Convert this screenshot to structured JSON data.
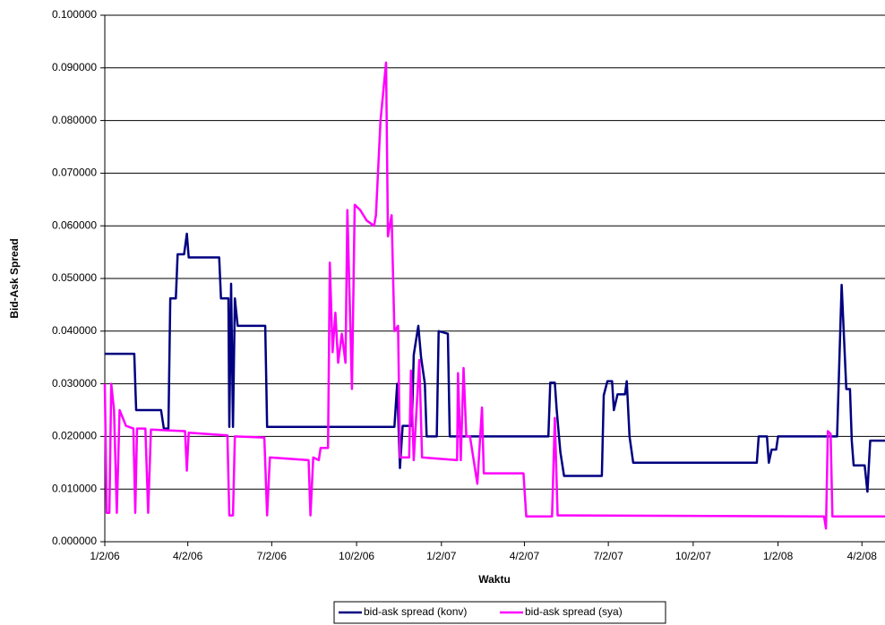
{
  "chart_data": {
    "type": "line",
    "y_label": "Bid-Ask Spread",
    "x_label": "Waktu",
    "grid": true,
    "xlim": [
      "1/2/06",
      "4/27/08"
    ],
    "xticks": [
      "1/2/06",
      "4/2/06",
      "7/2/06",
      "10/2/06",
      "1/2/07",
      "4/2/07",
      "7/2/07",
      "10/2/07",
      "1/2/08",
      "4/2/08"
    ],
    "ylim": [
      0,
      0.1
    ],
    "yticks": [
      {
        "value": 0,
        "label": "0.000000"
      },
      {
        "value": 0.01,
        "label": "0.010000"
      },
      {
        "value": 0.02,
        "label": "0.020000"
      },
      {
        "value": 0.03,
        "label": "0.030000"
      },
      {
        "value": 0.04,
        "label": "0.040000"
      },
      {
        "value": 0.05,
        "label": "0.050000"
      },
      {
        "value": 0.06,
        "label": "0.060000"
      },
      {
        "value": 0.07,
        "label": "0.070000"
      },
      {
        "value": 0.08,
        "label": "0.080000"
      },
      {
        "value": 0.09,
        "label": "0.090000"
      },
      {
        "value": 0.1,
        "label": "0.100000"
      }
    ],
    "series": [
      {
        "name": "bid-ask spread (konv)",
        "color": "#000080",
        "x": [
          "1/2/06",
          "2/3/06",
          "2/5/06",
          "3/4/06",
          "3/7/06",
          "3/12/06",
          "3/14/06",
          "3/20/06",
          "3/22/06",
          "3/29/06",
          "4/1/06",
          "4/3/06",
          "5/6/06",
          "5/8/06",
          "5/16/06",
          "5/17/06",
          "5/19/06",
          "5/21/06",
          "5/23/06",
          "5/26/06",
          "6/25/06",
          "6/27/06",
          "11/12/06",
          "11/15/06",
          "11/18/06",
          "11/21/06",
          "12/1/06",
          "12/3/06",
          "12/8/06",
          "12/11/06",
          "12/15/06",
          "12/17/06",
          "12/28/06",
          "12/30/06",
          "1/9/07",
          "1/11/07",
          "4/28/07",
          "4/30/07",
          "5/5/07",
          "5/7/07",
          "5/11/07",
          "5/15/07",
          "6/25/07",
          "6/27/07",
          "7/1/07",
          "7/6/07",
          "7/8/07",
          "7/12/07",
          "7/20/07",
          "7/22/07",
          "7/25/07",
          "7/29/07",
          "12/10/07",
          "12/12/07",
          "12/21/07",
          "12/23/07",
          "12/26/07",
          "12/31/07",
          "1/2/08",
          "3/6/08",
          "3/11/08",
          "3/16/08",
          "3/20/08",
          "3/22/08",
          "3/24/08",
          "4/5/08",
          "4/8/08",
          "4/11/08",
          "4/27/08"
        ],
        "values": [
          0.0357,
          0.0357,
          0.025,
          0.025,
          0.0215,
          0.0215,
          0.0462,
          0.0462,
          0.0546,
          0.0546,
          0.0585,
          0.054,
          0.054,
          0.0462,
          0.0462,
          0.0218,
          0.049,
          0.0218,
          0.0462,
          0.041,
          0.041,
          0.0218,
          0.0218,
          0.03,
          0.014,
          0.022,
          0.022,
          0.0355,
          0.041,
          0.035,
          0.03,
          0.02,
          0.02,
          0.04,
          0.0395,
          0.02,
          0.02,
          0.0302,
          0.0302,
          0.025,
          0.017,
          0.0125,
          0.0125,
          0.0278,
          0.0305,
          0.0305,
          0.025,
          0.028,
          0.028,
          0.0305,
          0.02,
          0.015,
          0.015,
          0.02,
          0.02,
          0.015,
          0.0175,
          0.0175,
          0.02,
          0.02,
          0.0488,
          0.029,
          0.029,
          0.0192,
          0.0145,
          0.0145,
          0.0095,
          0.0192,
          0.0192
        ]
      },
      {
        "name": "bid-ask spread (sya)",
        "color": "#ff00ff",
        "x": [
          "1/2/06",
          "1/4/06",
          "1/7/06",
          "1/9/06",
          "1/12/06",
          "1/15/06",
          "1/18/06",
          "1/25/06",
          "2/2/06",
          "2/4/06",
          "2/6/06",
          "2/15/06",
          "2/18/06",
          "2/21/06",
          "3/30/06",
          "4/1/06",
          "4/3/06",
          "5/15/06",
          "5/17/06",
          "5/21/06",
          "5/23/06",
          "6/24/06",
          "6/27/06",
          "6/30/06",
          "8/11/06",
          "8/13/06",
          "8/16/06",
          "8/22/06",
          "8/24/06",
          "9/1/06",
          "9/3/06",
          "9/6/06",
          "9/9/06",
          "9/12/06",
          "9/16/06",
          "9/20/06",
          "9/22/06",
          "9/27/06",
          "9/30/06",
          "10/6/06",
          "10/13/06",
          "10/21/06",
          "10/23/06",
          "10/28/06",
          "11/3/06",
          "11/5/06",
          "11/9/06",
          "11/12/06",
          "11/16/06",
          "11/18/06",
          "11/28/06",
          "11/30/06",
          "12/3/06",
          "12/9/06",
          "12/12/06",
          "1/19/07",
          "1/20/07",
          "1/23/07",
          "1/26/07",
          "1/29/07",
          "2/2/07",
          "2/10/07",
          "2/15/07",
          "2/17/07",
          "4/1/07",
          "4/4/07",
          "5/2/07",
          "5/5/07",
          "5/8/07",
          "2/21/08",
          "2/23/08",
          "2/25/08",
          "2/28/08",
          "3/1/08",
          "4/27/08"
        ],
        "values": [
          0.03,
          0.0055,
          0.0055,
          0.03,
          0.025,
          0.0055,
          0.025,
          0.022,
          0.0215,
          0.0055,
          0.0215,
          0.0215,
          0.0055,
          0.0213,
          0.021,
          0.0135,
          0.0207,
          0.0202,
          0.005,
          0.005,
          0.02,
          0.0198,
          0.005,
          0.016,
          0.0155,
          0.005,
          0.016,
          0.0155,
          0.0178,
          0.0178,
          0.053,
          0.036,
          0.0435,
          0.034,
          0.0395,
          0.034,
          0.063,
          0.029,
          0.064,
          0.063,
          0.061,
          0.06,
          0.062,
          0.08,
          0.091,
          0.058,
          0.062,
          0.04,
          0.041,
          0.016,
          0.016,
          0.0325,
          0.0155,
          0.0345,
          0.016,
          0.0155,
          0.032,
          0.0155,
          0.033,
          0.02,
          0.02,
          0.011,
          0.0255,
          0.013,
          0.013,
          0.0048,
          0.0048,
          0.0235,
          0.005,
          0.0048,
          0.0025,
          0.021,
          0.0205,
          0.0048,
          0.0048
        ]
      }
    ]
  }
}
